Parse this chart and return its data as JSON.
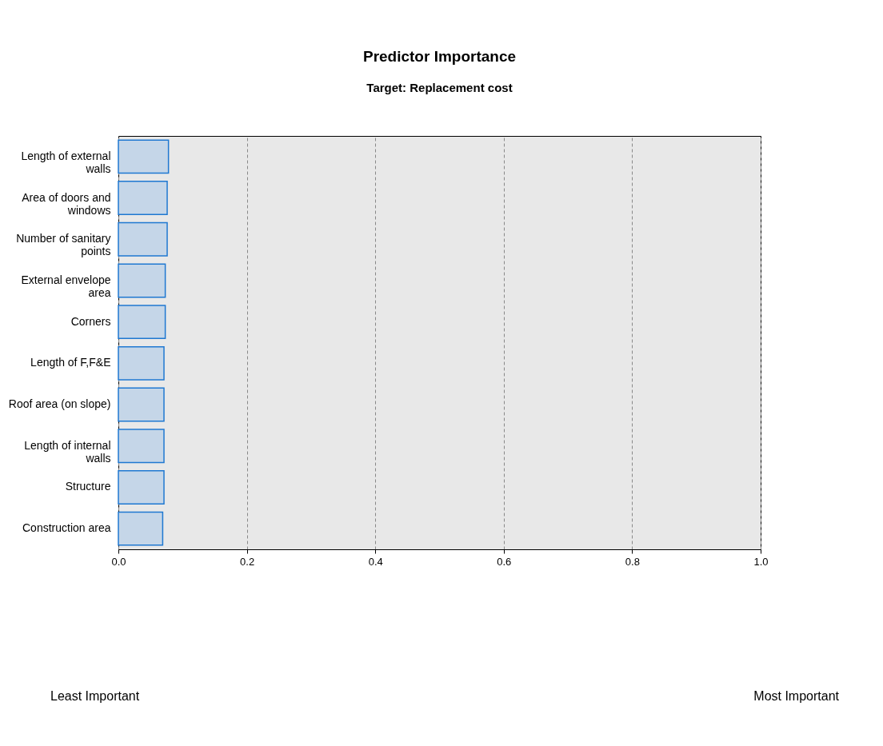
{
  "chart_data": {
    "type": "bar",
    "orientation": "horizontal",
    "title": "Predictor Importance",
    "subtitle": "Target: Replacement cost",
    "categories": [
      "Length of external walls",
      "Area of doors and windows",
      "Number of sanitary points",
      "External envelope area",
      "Corners",
      "Length of F,F&E",
      "Roof area (on slope)",
      "Length of internal walls",
      "Structure",
      "Construction area"
    ],
    "values": [
      0.078,
      0.076,
      0.076,
      0.073,
      0.073,
      0.071,
      0.071,
      0.071,
      0.071,
      0.069
    ],
    "color": "#c5d6e8",
    "xlim": [
      0,
      1
    ],
    "xticks": [
      {
        "value": 0,
        "label": "0.0"
      },
      {
        "value": 0.2,
        "label": "0.2"
      },
      {
        "value": 0.4,
        "label": "0.4"
      },
      {
        "value": 0.6,
        "label": "0.6"
      },
      {
        "value": 0.8,
        "label": "0.8"
      },
      {
        "value": 1,
        "label": "1.0"
      }
    ],
    "grid": "x",
    "annotations": [
      "Least Important",
      "Most Important"
    ]
  }
}
